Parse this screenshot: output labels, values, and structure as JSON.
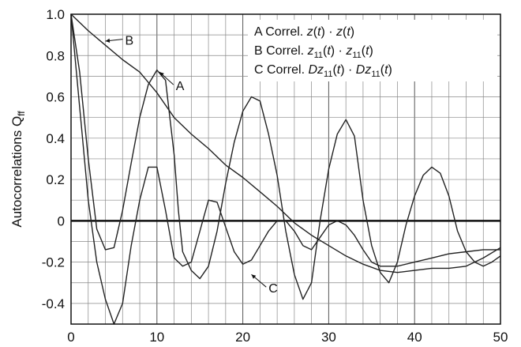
{
  "chart_data": {
    "type": "line",
    "title": "",
    "xlabel": "",
    "ylabel": "Autocorrelations Q",
    "ylabel_sub": "ff",
    "xlim": [
      0,
      50
    ],
    "ylim": [
      -0.5,
      1.0
    ],
    "x_ticks": [
      0,
      10,
      20,
      30,
      40,
      50
    ],
    "x_tick_labels": [
      "0",
      "10",
      "20",
      "30",
      "40",
      "50"
    ],
    "y_ticks": [
      1.0,
      0.8,
      0.6,
      0.4,
      0.2,
      0,
      -0.2,
      -0.4
    ],
    "y_tick_labels": [
      "1.0",
      "0.8",
      "0.6",
      "0.4",
      "0.2",
      "0",
      "-0.2",
      "-0.4"
    ],
    "grid": true,
    "legend_position": "top-right",
    "series": [
      {
        "id": "A",
        "name": "A Correl. z(t)·z(t)",
        "legend_parts": {
          "letter": "A",
          "prefix": "Correl. ",
          "var": "z",
          "sub": "",
          "pre_var": ""
        },
        "color": "#222222",
        "points": [
          [
            0,
            1.0
          ],
          [
            1,
            0.72
          ],
          [
            2,
            0.3
          ],
          [
            3,
            -0.04
          ],
          [
            4,
            -0.14
          ],
          [
            5,
            -0.13
          ],
          [
            6,
            0.05
          ],
          [
            7,
            0.28
          ],
          [
            8,
            0.5
          ],
          [
            9,
            0.66
          ],
          [
            10,
            0.73
          ],
          [
            11,
            0.68
          ],
          [
            12,
            0.32
          ],
          [
            12.5,
            0.05
          ],
          [
            13,
            -0.15
          ],
          [
            14,
            -0.24
          ],
          [
            15,
            -0.28
          ],
          [
            16,
            -0.22
          ],
          [
            17,
            -0.05
          ],
          [
            18,
            0.18
          ],
          [
            19,
            0.38
          ],
          [
            20,
            0.53
          ],
          [
            21,
            0.6
          ],
          [
            22,
            0.58
          ],
          [
            23,
            0.42
          ],
          [
            24,
            0.22
          ],
          [
            25,
            -0.05
          ],
          [
            26,
            -0.26
          ],
          [
            27,
            -0.38
          ],
          [
            28,
            -0.3
          ],
          [
            29,
            0.0
          ],
          [
            30,
            0.25
          ],
          [
            31,
            0.42
          ],
          [
            32,
            0.49
          ],
          [
            33,
            0.41
          ],
          [
            34,
            0.1
          ],
          [
            35,
            -0.12
          ],
          [
            36,
            -0.25
          ],
          [
            37,
            -0.3
          ],
          [
            38,
            -0.2
          ],
          [
            39,
            -0.02
          ],
          [
            40,
            0.12
          ],
          [
            41,
            0.22
          ],
          [
            42,
            0.26
          ],
          [
            43,
            0.23
          ],
          [
            44,
            0.12
          ],
          [
            45,
            -0.05
          ],
          [
            46,
            -0.15
          ],
          [
            47,
            -0.2
          ],
          [
            48,
            -0.22
          ],
          [
            49,
            -0.2
          ],
          [
            50,
            -0.17
          ]
        ]
      },
      {
        "id": "B",
        "name": "B Correl. z11(t)·z11(t)",
        "legend_parts": {
          "letter": "B",
          "prefix": "Correl. ",
          "var": "z",
          "sub": "11",
          "pre_var": ""
        },
        "color": "#222222",
        "points": [
          [
            0,
            1.0
          ],
          [
            2,
            0.92
          ],
          [
            4,
            0.85
          ],
          [
            6,
            0.78
          ],
          [
            8,
            0.72
          ],
          [
            10,
            0.62
          ],
          [
            12,
            0.5
          ],
          [
            14,
            0.42
          ],
          [
            16,
            0.35
          ],
          [
            18,
            0.27
          ],
          [
            20,
            0.21
          ],
          [
            22,
            0.14
          ],
          [
            24,
            0.07
          ],
          [
            26,
            -0.01
          ],
          [
            28,
            -0.07
          ],
          [
            30,
            -0.12
          ],
          [
            32,
            -0.17
          ],
          [
            34,
            -0.21
          ],
          [
            36,
            -0.24
          ],
          [
            38,
            -0.25
          ],
          [
            40,
            -0.24
          ],
          [
            42,
            -0.23
          ],
          [
            44,
            -0.23
          ],
          [
            46,
            -0.22
          ],
          [
            48,
            -0.18
          ],
          [
            50,
            -0.13
          ]
        ]
      },
      {
        "id": "C",
        "name": "C Correl. Dz11(t)·Dz11(t)",
        "legend_parts": {
          "letter": "C",
          "prefix": "Correl. ",
          "var": "z",
          "sub": "11",
          "pre_var": "D"
        },
        "color": "#222222",
        "points": [
          [
            0,
            1.0
          ],
          [
            1,
            0.55
          ],
          [
            2,
            0.1
          ],
          [
            3,
            -0.2
          ],
          [
            4,
            -0.38
          ],
          [
            5,
            -0.5
          ],
          [
            6,
            -0.4
          ],
          [
            7,
            -0.12
          ],
          [
            8,
            0.1
          ],
          [
            9,
            0.26
          ],
          [
            10,
            0.26
          ],
          [
            11,
            0.05
          ],
          [
            12,
            -0.18
          ],
          [
            13,
            -0.22
          ],
          [
            14,
            -0.2
          ],
          [
            15,
            -0.05
          ],
          [
            16,
            0.1
          ],
          [
            17,
            0.09
          ],
          [
            18,
            -0.03
          ],
          [
            19,
            -0.15
          ],
          [
            20,
            -0.21
          ],
          [
            21,
            -0.19
          ],
          [
            22,
            -0.12
          ],
          [
            23,
            -0.05
          ],
          [
            24,
            0.0
          ],
          [
            25,
            0.0
          ],
          [
            26,
            -0.05
          ],
          [
            27,
            -0.12
          ],
          [
            28,
            -0.14
          ],
          [
            29,
            -0.08
          ],
          [
            30,
            -0.02
          ],
          [
            31,
            0.0
          ],
          [
            32,
            -0.02
          ],
          [
            33,
            -0.07
          ],
          [
            34,
            -0.14
          ],
          [
            35,
            -0.2
          ],
          [
            36,
            -0.22
          ],
          [
            38,
            -0.22
          ],
          [
            40,
            -0.2
          ],
          [
            42,
            -0.18
          ],
          [
            44,
            -0.16
          ],
          [
            46,
            -0.15
          ],
          [
            48,
            -0.14
          ],
          [
            50,
            -0.14
          ]
        ]
      }
    ],
    "annotations": [
      {
        "series": "A",
        "label": "A",
        "label_xy": [
          12.2,
          0.64
        ],
        "arrow_to": [
          10.3,
          0.72
        ]
      },
      {
        "series": "B",
        "label": "B",
        "label_xy": [
          6.3,
          0.86
        ],
        "arrow_to": [
          4.0,
          0.87
        ]
      },
      {
        "series": "C",
        "label": "C",
        "label_xy": [
          23.0,
          -0.34
        ],
        "arrow_to": [
          21.0,
          -0.26
        ]
      }
    ]
  }
}
